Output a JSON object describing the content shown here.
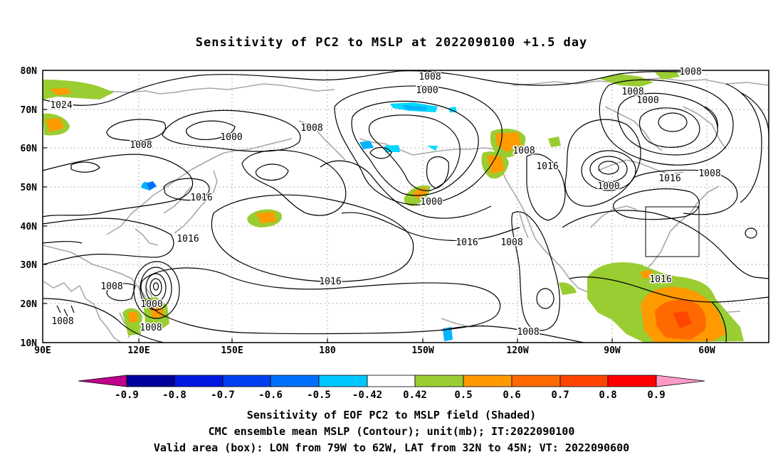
{
  "title": "Sensitivity of PC2 to MSLP at 2022090100 +1.5 day",
  "lat_labels": [
    "80N",
    "70N",
    "60N",
    "50N",
    "40N",
    "30N",
    "20N",
    "10N"
  ],
  "lon_labels": [
    "90E",
    "120E",
    "150E",
    "180",
    "150W",
    "120W",
    "90W",
    "60W"
  ],
  "contour_labels": [
    "1024",
    "1008",
    "1000",
    "1008",
    "1016",
    "1016",
    "1008",
    "1000",
    "1008",
    "1000",
    "1008",
    "1016",
    "1016",
    "1008",
    "1000",
    "1016",
    "1008",
    "1000",
    "1008",
    "1016",
    "1008",
    "1016",
    "1008",
    "1008",
    "1000",
    "1008",
    "1008"
  ],
  "colorbar": {
    "labels": [
      "-0.9",
      "-0.8",
      "-0.7",
      "-0.6",
      "-0.5",
      "-0.42",
      "0.42",
      "0.5",
      "0.6",
      "0.7",
      "0.8",
      "0.9"
    ],
    "colors": [
      "#c0008c",
      "#00009c",
      "#0018e0",
      "#0040f0",
      "#0070ff",
      "#00b4ff",
      "#00d8ff",
      "#ffffff",
      "#9acd32",
      "#ff9a00",
      "#ff6a00",
      "#ff4500",
      "#ff2000",
      "#ff0000",
      "#ff9ac8"
    ]
  },
  "captions": {
    "line1": "Sensitivity of EOF PC2 to MSLP field (Shaded)",
    "line2": "CMC ensemble mean MSLP (Contour); unit(mb); IT:2022090100",
    "line3": "Valid area (box): LON from 79W to 62W, LAT from 32N to 45N; VT: 2022090600"
  },
  "valid_area": {
    "lon_min": -79,
    "lon_max": -62,
    "lat_min": 32,
    "lat_max": 45
  }
}
